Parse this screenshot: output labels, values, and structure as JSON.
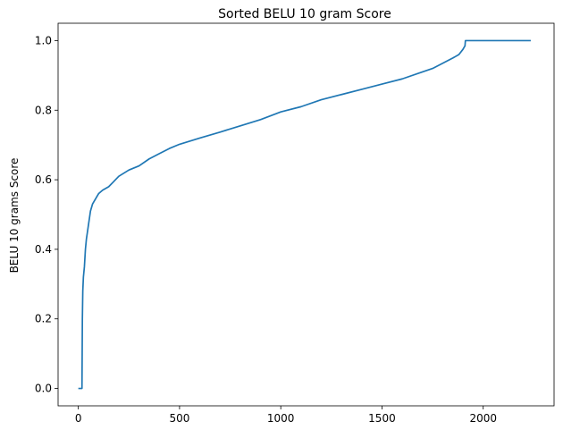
{
  "chart_data": {
    "type": "line",
    "title": "Sorted BELU 10 gram Score",
    "xlabel": "",
    "ylabel": "BELU 10 grams Score",
    "xlim": [
      -100,
      2350
    ],
    "ylim": [
      -0.05,
      1.05
    ],
    "xticks": [
      0,
      500,
      1000,
      1500,
      2000
    ],
    "yticks": [
      0.0,
      0.2,
      0.4,
      0.6,
      0.8,
      1.0
    ],
    "grid": false,
    "legend": "none",
    "series": [
      {
        "color": "#1f77b4",
        "x": [
          0,
          18,
          20,
          22,
          25,
          30,
          35,
          40,
          45,
          50,
          55,
          60,
          65,
          70,
          80,
          90,
          100,
          120,
          150,
          175,
          200,
          250,
          300,
          350,
          400,
          450,
          500,
          600,
          700,
          800,
          900,
          1000,
          1100,
          1200,
          1300,
          1400,
          1500,
          1600,
          1700,
          1750,
          1800,
          1850,
          1880,
          1900,
          1905,
          1910,
          1912,
          1950,
          2000,
          2100,
          2200,
          2235
        ],
        "y": [
          0.0,
          0.0,
          0.2,
          0.28,
          0.32,
          0.35,
          0.4,
          0.43,
          0.45,
          0.47,
          0.49,
          0.51,
          0.52,
          0.53,
          0.54,
          0.55,
          0.56,
          0.57,
          0.58,
          0.595,
          0.61,
          0.628,
          0.64,
          0.66,
          0.675,
          0.69,
          0.702,
          0.72,
          0.737,
          0.755,
          0.773,
          0.795,
          0.81,
          0.83,
          0.845,
          0.86,
          0.875,
          0.89,
          0.91,
          0.92,
          0.935,
          0.95,
          0.96,
          0.975,
          0.98,
          0.985,
          1.0,
          1.0,
          1.0,
          1.0,
          1.0,
          1.0
        ]
      }
    ]
  }
}
